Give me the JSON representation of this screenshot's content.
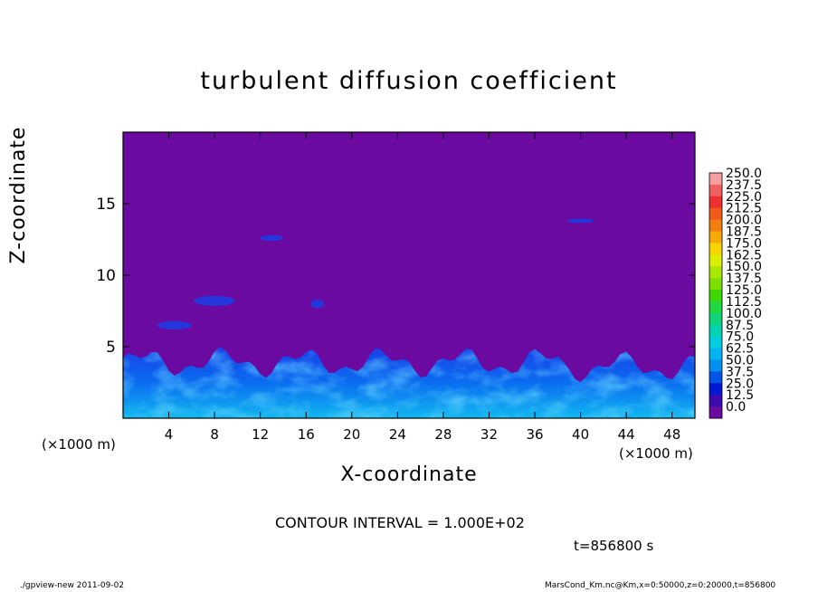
{
  "chart_data": {
    "type": "heatmap",
    "title": "turbulent diffusion coefficient",
    "xlabel": "X-coordinate",
    "ylabel": "Z-coordinate",
    "x_unit": "(×1000 m)",
    "y_unit": "(×1000 m)",
    "xlim": [
      0,
      50
    ],
    "ylim": [
      0,
      20
    ],
    "x_ticks": [
      4,
      8,
      12,
      16,
      20,
      24,
      28,
      32,
      36,
      40,
      44,
      48
    ],
    "y_ticks": [
      5,
      10,
      15
    ],
    "colorbar": {
      "levels": [
        "250.0",
        "237.5",
        "225.0",
        "212.5",
        "200.0",
        "187.5",
        "175.0",
        "162.5",
        "150.0",
        "137.5",
        "125.0",
        "112.5",
        "100.0",
        "87.5",
        "75.0",
        "62.5",
        "50.0",
        "37.5",
        "25.0",
        "12.5",
        "0.0"
      ],
      "colors": [
        "#f4a0a0",
        "#f06060",
        "#ee3030",
        "#f05a18",
        "#f27d10",
        "#f5aa08",
        "#f8d400",
        "#dcef00",
        "#a8e800",
        "#7ee000",
        "#3cd800",
        "#20d840",
        "#10d47a",
        "#00d4b0",
        "#00cfe0",
        "#00b4f0",
        "#0090f0",
        "#0055e6",
        "#0018d0",
        "#3d0ab0",
        "#6a0aa0"
      ]
    },
    "contour_interval": "CONTOUR INTERVAL = 1.000E+02",
    "time_label": "t=856800 s",
    "footer_left": "./gpview-new   2011-09-02",
    "footer_right": "MarsCond_Km.nc@Km,x=0:50000,z=0:20000,t=856800"
  }
}
